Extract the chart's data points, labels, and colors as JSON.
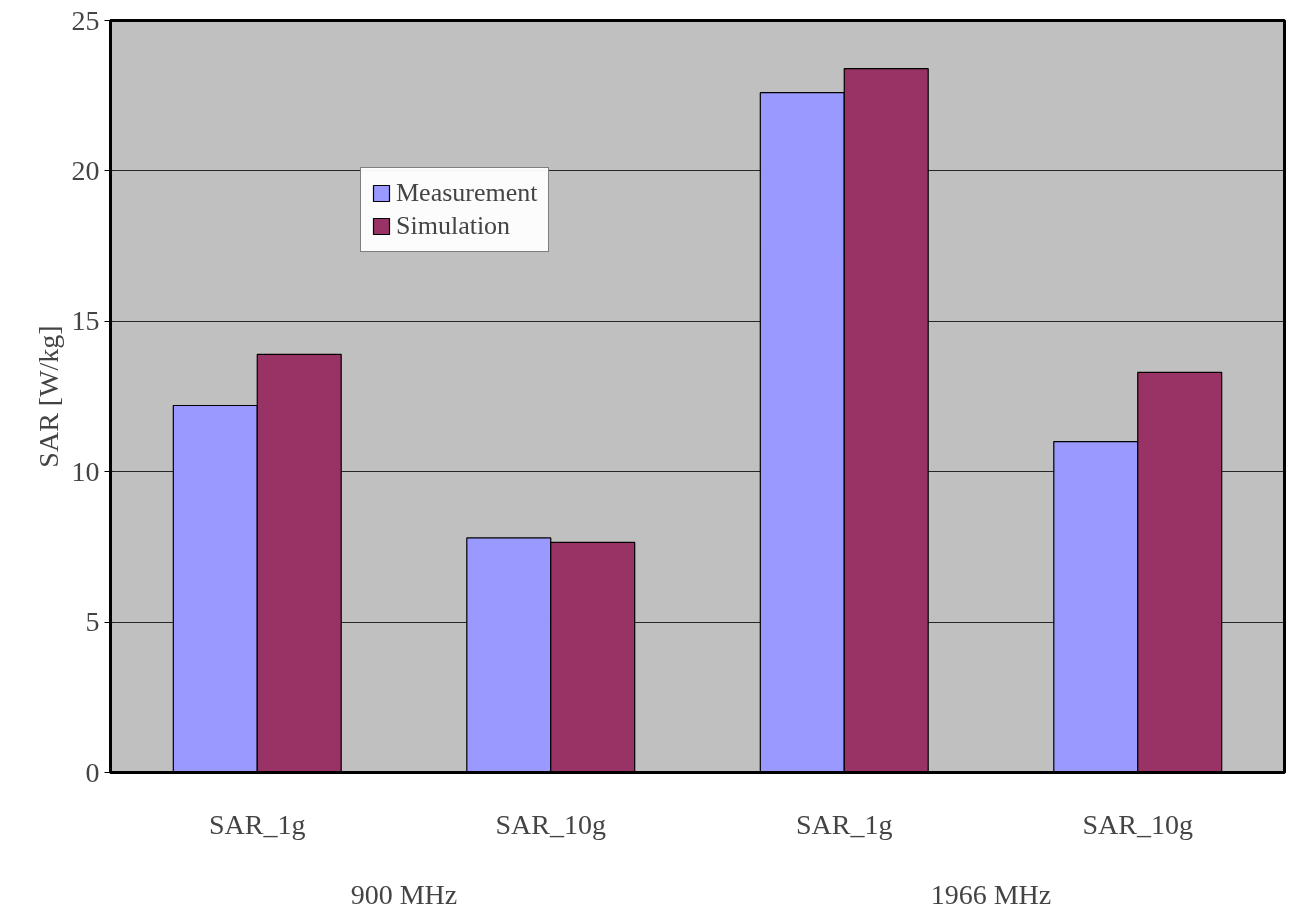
{
  "chart_data": {
    "type": "bar",
    "ylabel": "SAR [W/kg]",
    "categories": [
      "SAR_1g",
      "SAR_10g",
      "SAR_1g",
      "SAR_10g"
    ],
    "series": [
      {
        "name": "Measurement",
        "color": "#9999ff",
        "values": [
          12.2,
          7.8,
          22.6,
          11.0
        ]
      },
      {
        "name": "Simulation",
        "color": "#993366",
        "values": [
          13.9,
          7.65,
          23.4,
          13.3
        ]
      }
    ],
    "annotations": [
      "900 MHz",
      "1966 MHz"
    ],
    "ylim": [
      0,
      25
    ],
    "yticks": [
      0,
      5,
      10,
      15,
      20,
      25
    ],
    "grid": "y",
    "legend": "top left"
  }
}
